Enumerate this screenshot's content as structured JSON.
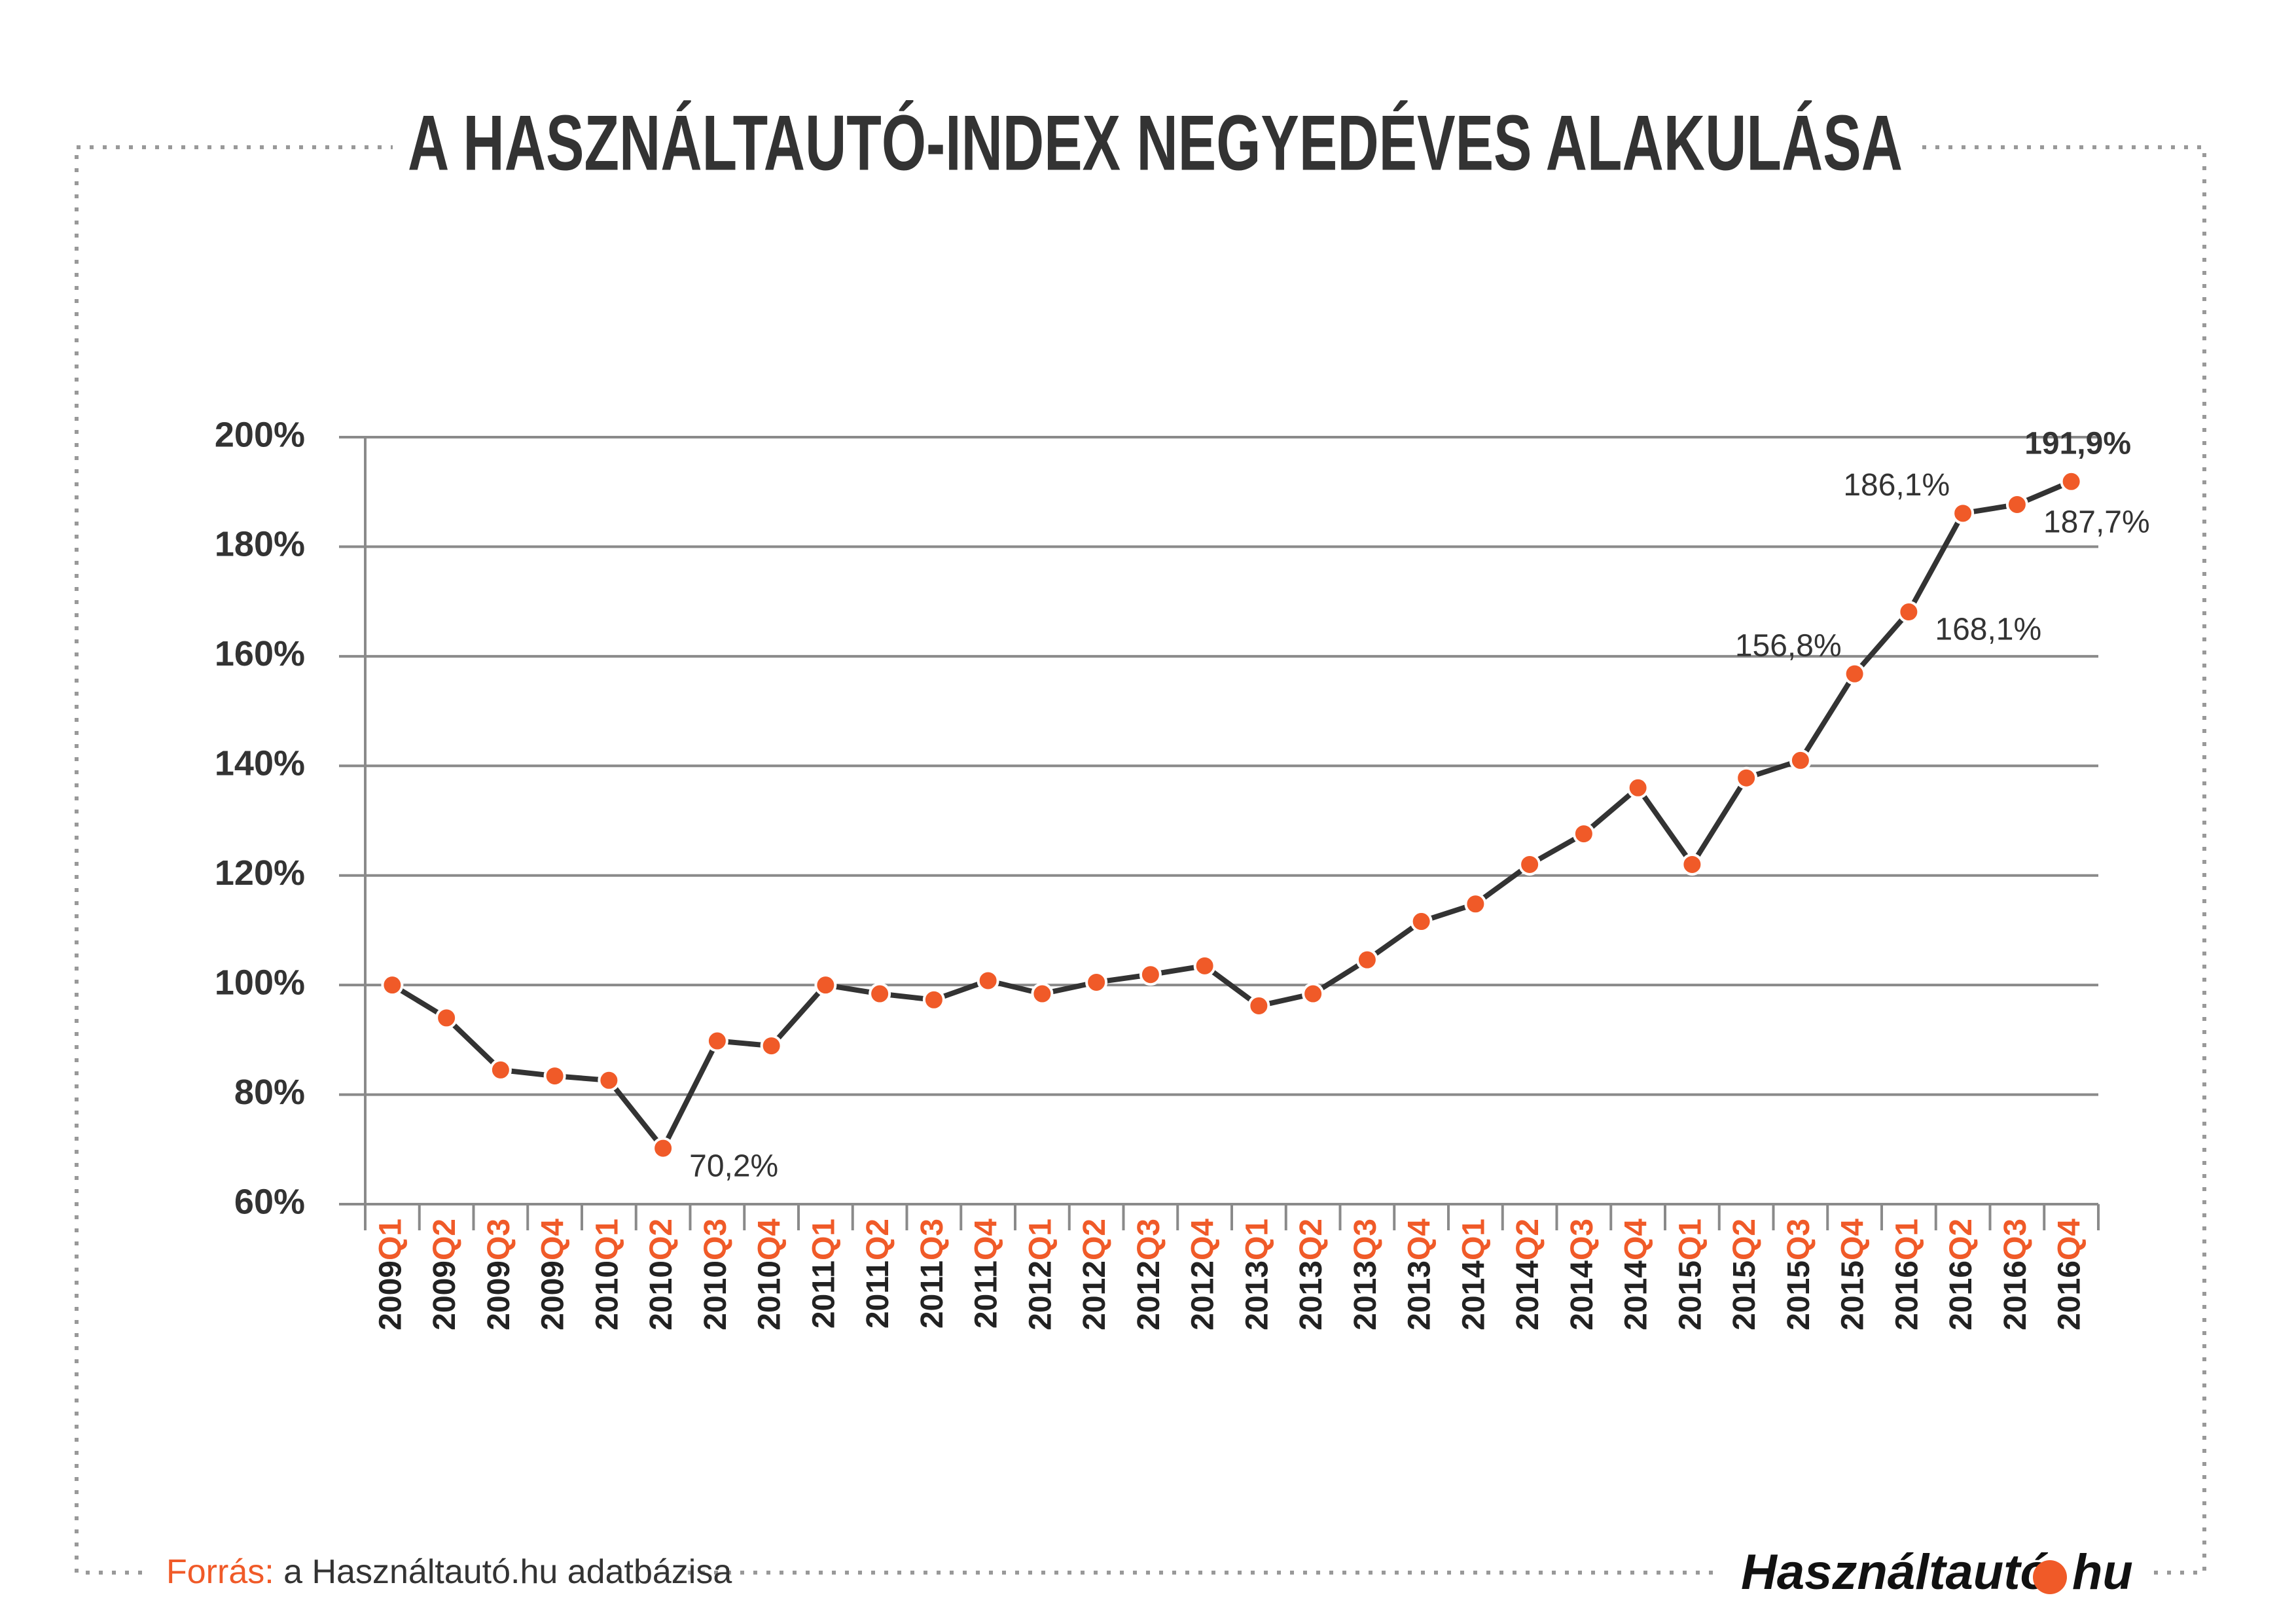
{
  "chart_data": {
    "type": "line",
    "title": "A HASZNÁLTAUTÓ-INDEX NEGYEDÉVES ALAKULÁSA",
    "categories": [
      "2009Q1",
      "2009Q2",
      "2009Q3",
      "2009Q4",
      "2010Q1",
      "2010Q2",
      "2010Q3",
      "2010Q4",
      "2011Q1",
      "2011Q2",
      "2011Q3",
      "2011Q4",
      "2012Q1",
      "2012Q2",
      "2012Q3",
      "2012Q4",
      "2013Q1",
      "2013Q2",
      "2013Q3",
      "2013Q4",
      "2014Q1",
      "2014Q2",
      "2014Q3",
      "2014Q4",
      "2015Q1",
      "2015Q2",
      "2015Q3",
      "2015Q4",
      "2016Q1",
      "2016Q2",
      "2016Q3",
      "2016Q4"
    ],
    "series": [
      {
        "color": "#333333",
        "marker_color": "#f05a28",
        "values": [
          100,
          94,
          84.5,
          83.4,
          82.6,
          70.2,
          89.8,
          88.9,
          100,
          98.4,
          97.3,
          100.8,
          98.4,
          100.5,
          101.9,
          103.5,
          96.2,
          98.4,
          104.6,
          111.6,
          114.8,
          122,
          127.6,
          136,
          122,
          137.8,
          141,
          156.8,
          168.1,
          186.1,
          187.7,
          191.9
        ],
        "value_labels": [
          null,
          null,
          null,
          null,
          null,
          "70,2%",
          null,
          null,
          null,
          null,
          null,
          null,
          null,
          null,
          null,
          null,
          null,
          null,
          null,
          null,
          null,
          null,
          null,
          null,
          null,
          null,
          null,
          "156,8%",
          "168,1%",
          "186,1%",
          "187,7%",
          "191,9%"
        ]
      }
    ],
    "ylim": [
      60,
      200
    ],
    "yticks": [
      {
        "value": 60,
        "label": "60%"
      },
      {
        "value": 80,
        "label": "80%"
      },
      {
        "value": 100,
        "label": "100%"
      },
      {
        "value": 120,
        "label": "120%"
      },
      {
        "value": 140,
        "label": "140%"
      },
      {
        "value": 160,
        "label": "160%"
      },
      {
        "value": 180,
        "label": "180%"
      },
      {
        "value": 200,
        "label": "200%"
      }
    ],
    "grid": true,
    "category_year_color": "#222222",
    "category_quarter_color": "#f05a28"
  },
  "footer": {
    "source_label": "Forrás:",
    "source_text": "a Használtautó.hu adatbázisa",
    "logo_left": "Használtautó",
    "logo_right": "hu"
  }
}
